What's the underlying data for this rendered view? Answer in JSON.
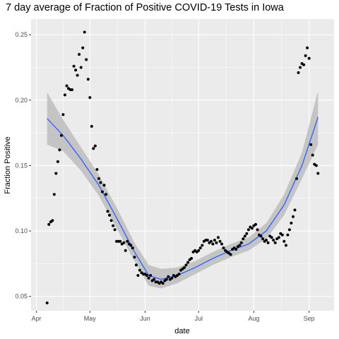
{
  "chart_data": {
    "type": "scatter",
    "title": "7 day average of Fraction of Positive COVID-19 Tests in Iowa",
    "xlabel": "date",
    "ylabel": "Fraction Positive",
    "x_axis_type": "date",
    "xlim": [
      "2020-03-29",
      "2020-09-15"
    ],
    "ylim": [
      0.039,
      0.262
    ],
    "x_ticks": [
      {
        "date": "2020-04-01",
        "label": "Apr"
      },
      {
        "date": "2020-05-01",
        "label": "May"
      },
      {
        "date": "2020-06-01",
        "label": "Jun"
      },
      {
        "date": "2020-07-01",
        "label": "Jul"
      },
      {
        "date": "2020-08-01",
        "label": "Aug"
      },
      {
        "date": "2020-09-01",
        "label": "Sep"
      }
    ],
    "y_ticks": [
      0.05,
      0.1,
      0.15,
      0.2,
      0.25
    ],
    "y_tick_labels": [
      "0.05",
      "0.10",
      "0.15",
      "0.20",
      "0.25"
    ],
    "grid": true,
    "legend": "none",
    "colors": {
      "panel": "#ebebeb",
      "grid": "#ffffff",
      "points": "#000000",
      "smooth_line": "#3366ff",
      "ribbon": "#bdbdbd"
    },
    "series": [
      {
        "type": "scatter",
        "points": [
          {
            "x": "2020-04-07",
            "y": 0.045
          },
          {
            "x": "2020-04-08",
            "y": 0.105
          },
          {
            "x": "2020-04-09",
            "y": 0.107
          },
          {
            "x": "2020-04-10",
            "y": 0.108
          },
          {
            "x": "2020-04-11",
            "y": 0.128
          },
          {
            "x": "2020-04-12",
            "y": 0.144
          },
          {
            "x": "2020-04-13",
            "y": 0.153
          },
          {
            "x": "2020-04-14",
            "y": 0.162
          },
          {
            "x": "2020-04-15",
            "y": 0.173
          },
          {
            "x": "2020-04-16",
            "y": 0.189
          },
          {
            "x": "2020-04-17",
            "y": 0.204
          },
          {
            "x": "2020-04-18",
            "y": 0.211
          },
          {
            "x": "2020-04-19",
            "y": 0.209
          },
          {
            "x": "2020-04-20",
            "y": 0.208
          },
          {
            "x": "2020-04-21",
            "y": 0.208
          },
          {
            "x": "2020-04-22",
            "y": 0.226
          },
          {
            "x": "2020-04-23",
            "y": 0.223
          },
          {
            "x": "2020-04-24",
            "y": 0.219
          },
          {
            "x": "2020-04-25",
            "y": 0.235
          },
          {
            "x": "2020-04-26",
            "y": 0.225
          },
          {
            "x": "2020-04-27",
            "y": 0.24
          },
          {
            "x": "2020-04-28",
            "y": 0.252
          },
          {
            "x": "2020-04-29",
            "y": 0.231
          },
          {
            "x": "2020-04-30",
            "y": 0.216
          },
          {
            "x": "2020-05-01",
            "y": 0.202
          },
          {
            "x": "2020-05-02",
            "y": 0.18
          },
          {
            "x": "2020-05-03",
            "y": 0.163
          },
          {
            "x": "2020-05-04",
            "y": 0.165
          },
          {
            "x": "2020-05-05",
            "y": 0.147
          },
          {
            "x": "2020-05-06",
            "y": 0.14
          },
          {
            "x": "2020-05-07",
            "y": 0.137
          },
          {
            "x": "2020-05-08",
            "y": 0.13
          },
          {
            "x": "2020-05-09",
            "y": 0.135
          },
          {
            "x": "2020-05-10",
            "y": 0.128
          },
          {
            "x": "2020-05-11",
            "y": 0.115
          },
          {
            "x": "2020-05-12",
            "y": 0.112
          },
          {
            "x": "2020-05-13",
            "y": 0.108
          },
          {
            "x": "2020-05-14",
            "y": 0.104
          },
          {
            "x": "2020-05-15",
            "y": 0.101
          },
          {
            "x": "2020-05-16",
            "y": 0.092
          },
          {
            "x": "2020-05-17",
            "y": 0.092
          },
          {
            "x": "2020-05-18",
            "y": 0.092
          },
          {
            "x": "2020-05-19",
            "y": 0.09
          },
          {
            "x": "2020-05-20",
            "y": 0.091
          },
          {
            "x": "2020-05-21",
            "y": 0.085
          },
          {
            "x": "2020-05-22",
            "y": 0.092
          },
          {
            "x": "2020-05-23",
            "y": 0.09
          },
          {
            "x": "2020-05-24",
            "y": 0.089
          },
          {
            "x": "2020-05-25",
            "y": 0.087
          },
          {
            "x": "2020-05-26",
            "y": 0.08
          },
          {
            "x": "2020-05-27",
            "y": 0.074
          },
          {
            "x": "2020-05-28",
            "y": 0.066
          },
          {
            "x": "2020-05-29",
            "y": 0.07
          },
          {
            "x": "2020-05-30",
            "y": 0.068
          },
          {
            "x": "2020-05-31",
            "y": 0.067
          },
          {
            "x": "2020-06-01",
            "y": 0.067
          },
          {
            "x": "2020-06-02",
            "y": 0.066
          },
          {
            "x": "2020-06-03",
            "y": 0.064
          },
          {
            "x": "2020-06-04",
            "y": 0.066
          },
          {
            "x": "2020-06-05",
            "y": 0.062
          },
          {
            "x": "2020-06-06",
            "y": 0.063
          },
          {
            "x": "2020-06-07",
            "y": 0.061
          },
          {
            "x": "2020-06-08",
            "y": 0.061
          },
          {
            "x": "2020-06-09",
            "y": 0.06
          },
          {
            "x": "2020-06-10",
            "y": 0.061
          },
          {
            "x": "2020-06-11",
            "y": 0.06
          },
          {
            "x": "2020-06-12",
            "y": 0.062
          },
          {
            "x": "2020-06-13",
            "y": 0.063
          },
          {
            "x": "2020-06-14",
            "y": 0.065
          },
          {
            "x": "2020-06-15",
            "y": 0.063
          },
          {
            "x": "2020-06-16",
            "y": 0.064
          },
          {
            "x": "2020-06-17",
            "y": 0.066
          },
          {
            "x": "2020-06-18",
            "y": 0.065
          },
          {
            "x": "2020-06-19",
            "y": 0.066
          },
          {
            "x": "2020-06-20",
            "y": 0.067
          },
          {
            "x": "2020-06-21",
            "y": 0.07
          },
          {
            "x": "2020-06-22",
            "y": 0.071
          },
          {
            "x": "2020-06-23",
            "y": 0.072
          },
          {
            "x": "2020-06-24",
            "y": 0.074
          },
          {
            "x": "2020-06-25",
            "y": 0.076
          },
          {
            "x": "2020-06-26",
            "y": 0.078
          },
          {
            "x": "2020-06-27",
            "y": 0.079
          },
          {
            "x": "2020-06-28",
            "y": 0.084
          },
          {
            "x": "2020-06-29",
            "y": 0.085
          },
          {
            "x": "2020-06-30",
            "y": 0.084
          },
          {
            "x": "2020-07-01",
            "y": 0.085
          },
          {
            "x": "2020-07-02",
            "y": 0.087
          },
          {
            "x": "2020-07-03",
            "y": 0.089
          },
          {
            "x": "2020-07-04",
            "y": 0.092
          },
          {
            "x": "2020-07-05",
            "y": 0.093
          },
          {
            "x": "2020-07-06",
            "y": 0.093
          },
          {
            "x": "2020-07-07",
            "y": 0.091
          },
          {
            "x": "2020-07-08",
            "y": 0.092
          },
          {
            "x": "2020-07-09",
            "y": 0.09
          },
          {
            "x": "2020-07-10",
            "y": 0.093
          },
          {
            "x": "2020-07-11",
            "y": 0.091
          },
          {
            "x": "2020-07-12",
            "y": 0.095
          },
          {
            "x": "2020-07-13",
            "y": 0.092
          },
          {
            "x": "2020-07-14",
            "y": 0.09
          },
          {
            "x": "2020-07-15",
            "y": 0.087
          },
          {
            "x": "2020-07-16",
            "y": 0.085
          },
          {
            "x": "2020-07-17",
            "y": 0.084
          },
          {
            "x": "2020-07-18",
            "y": 0.083
          },
          {
            "x": "2020-07-19",
            "y": 0.082
          },
          {
            "x": "2020-07-20",
            "y": 0.086
          },
          {
            "x": "2020-07-21",
            "y": 0.087
          },
          {
            "x": "2020-07-22",
            "y": 0.086
          },
          {
            "x": "2020-07-23",
            "y": 0.088
          },
          {
            "x": "2020-07-24",
            "y": 0.089
          },
          {
            "x": "2020-07-25",
            "y": 0.091
          },
          {
            "x": "2020-07-26",
            "y": 0.094
          },
          {
            "x": "2020-07-27",
            "y": 0.096
          },
          {
            "x": "2020-07-28",
            "y": 0.098
          },
          {
            "x": "2020-07-29",
            "y": 0.101
          },
          {
            "x": "2020-07-30",
            "y": 0.103
          },
          {
            "x": "2020-07-31",
            "y": 0.102
          },
          {
            "x": "2020-08-01",
            "y": 0.104
          },
          {
            "x": "2020-08-02",
            "y": 0.105
          },
          {
            "x": "2020-08-03",
            "y": 0.101
          },
          {
            "x": "2020-08-04",
            "y": 0.097
          },
          {
            "x": "2020-08-05",
            "y": 0.096
          },
          {
            "x": "2020-08-06",
            "y": 0.094
          },
          {
            "x": "2020-08-07",
            "y": 0.092
          },
          {
            "x": "2020-08-08",
            "y": 0.093
          },
          {
            "x": "2020-08-09",
            "y": 0.091
          },
          {
            "x": "2020-08-10",
            "y": 0.096
          },
          {
            "x": "2020-08-11",
            "y": 0.095
          },
          {
            "x": "2020-08-12",
            "y": 0.093
          },
          {
            "x": "2020-08-13",
            "y": 0.091
          },
          {
            "x": "2020-08-14",
            "y": 0.094
          },
          {
            "x": "2020-08-15",
            "y": 0.095
          },
          {
            "x": "2020-08-16",
            "y": 0.098
          },
          {
            "x": "2020-08-17",
            "y": 0.097
          },
          {
            "x": "2020-08-18",
            "y": 0.092
          },
          {
            "x": "2020-08-19",
            "y": 0.089
          },
          {
            "x": "2020-08-20",
            "y": 0.097
          },
          {
            "x": "2020-08-21",
            "y": 0.101
          },
          {
            "x": "2020-08-22",
            "y": 0.106
          },
          {
            "x": "2020-08-23",
            "y": 0.111
          },
          {
            "x": "2020-08-24",
            "y": 0.116
          },
          {
            "x": "2020-08-25",
            "y": 0.14
          },
          {
            "x": "2020-08-26",
            "y": 0.221
          },
          {
            "x": "2020-08-27",
            "y": 0.225
          },
          {
            "x": "2020-08-28",
            "y": 0.228
          },
          {
            "x": "2020-08-29",
            "y": 0.227
          },
          {
            "x": "2020-08-30",
            "y": 0.234
          },
          {
            "x": "2020-08-31",
            "y": 0.24
          },
          {
            "x": "2020-09-01",
            "y": 0.232
          },
          {
            "x": "2020-09-02",
            "y": 0.166
          },
          {
            "x": "2020-09-03",
            "y": 0.158
          },
          {
            "x": "2020-09-04",
            "y": 0.151
          },
          {
            "x": "2020-09-05",
            "y": 0.15
          },
          {
            "x": "2020-09-06",
            "y": 0.144
          }
        ]
      },
      {
        "type": "smooth",
        "points": [
          {
            "x": "2020-04-07",
            "y": 0.186,
            "lo": 0.166,
            "hi": 0.206
          },
          {
            "x": "2020-04-16",
            "y": 0.173,
            "lo": 0.161,
            "hi": 0.185
          },
          {
            "x": "2020-04-26",
            "y": 0.155,
            "lo": 0.146,
            "hi": 0.164
          },
          {
            "x": "2020-05-06",
            "y": 0.135,
            "lo": 0.127,
            "hi": 0.143
          },
          {
            "x": "2020-05-16",
            "y": 0.11,
            "lo": 0.102,
            "hi": 0.118
          },
          {
            "x": "2020-05-26",
            "y": 0.084,
            "lo": 0.077,
            "hi": 0.091
          },
          {
            "x": "2020-06-03",
            "y": 0.066,
            "lo": 0.058,
            "hi": 0.074
          },
          {
            "x": "2020-06-10",
            "y": 0.063,
            "lo": 0.056,
            "hi": 0.071
          },
          {
            "x": "2020-06-19",
            "y": 0.066,
            "lo": 0.06,
            "hi": 0.072
          },
          {
            "x": "2020-06-29",
            "y": 0.072,
            "lo": 0.067,
            "hi": 0.077
          },
          {
            "x": "2020-07-09",
            "y": 0.079,
            "lo": 0.074,
            "hi": 0.084
          },
          {
            "x": "2020-07-19",
            "y": 0.085,
            "lo": 0.08,
            "hi": 0.09
          },
          {
            "x": "2020-07-29",
            "y": 0.09,
            "lo": 0.085,
            "hi": 0.095
          },
          {
            "x": "2020-08-08",
            "y": 0.1,
            "lo": 0.094,
            "hi": 0.106
          },
          {
            "x": "2020-08-18",
            "y": 0.12,
            "lo": 0.112,
            "hi": 0.128
          },
          {
            "x": "2020-08-28",
            "y": 0.15,
            "lo": 0.14,
            "hi": 0.16
          },
          {
            "x": "2020-09-06",
            "y": 0.187,
            "lo": 0.166,
            "hi": 0.207
          }
        ]
      }
    ]
  }
}
